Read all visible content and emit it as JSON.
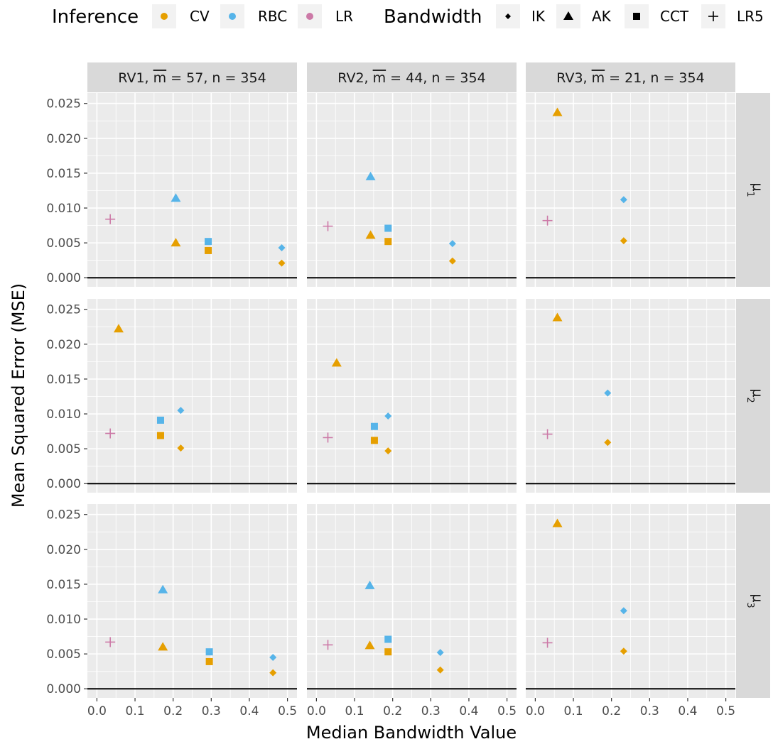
{
  "chart_data": {
    "type": "scatter",
    "xlabel": "Median Bandwidth Value",
    "ylabel": "Mean Squared Error (MSE)",
    "xlim": [
      -0.025,
      0.525
    ],
    "ylim": [
      -0.0013,
      0.0265
    ],
    "x_ticks": [
      "0.0",
      "0.1",
      "0.2",
      "0.3",
      "0.4",
      "0.5"
    ],
    "y_ticks": [
      "0.000",
      "0.005",
      "0.010",
      "0.015",
      "0.020",
      "0.025"
    ],
    "grid": true,
    "reference_line_y": 0,
    "legend": {
      "placement": "top",
      "inference_title": "Inference",
      "inference": [
        {
          "key": "CV",
          "label": "CV",
          "color": "#E69F00"
        },
        {
          "key": "RBC",
          "label": "RBC",
          "color": "#56B4E9"
        },
        {
          "key": "LR",
          "label": "LR",
          "color": "#CC79A7"
        }
      ],
      "bandwidth_title": "Bandwidth",
      "bandwidth": [
        {
          "key": "IK",
          "label": "IK",
          "shape": "diamond"
        },
        {
          "key": "AK",
          "label": "AK",
          "shape": "triangle"
        },
        {
          "key": "CCT",
          "label": "CCT",
          "shape": "square"
        },
        {
          "key": "LR5",
          "label": "LR5",
          "shape": "plus"
        }
      ]
    },
    "columns": [
      {
        "rv": "RV1",
        "m": "57",
        "n": "354"
      },
      {
        "rv": "RV2",
        "m": "44",
        "n": "354"
      },
      {
        "rv": "RV3",
        "m": "21",
        "n": "354"
      }
    ],
    "rows": [
      {
        "label": "μ1",
        "base": "μ",
        "sub": "1"
      },
      {
        "label": "μ2",
        "base": "μ",
        "sub": "2"
      },
      {
        "label": "μ3",
        "base": "μ",
        "sub": "3"
      }
    ],
    "panels": [
      {
        "col": 0,
        "row": 0,
        "points": [
          {
            "inference": "LR",
            "bandwidth": "LR5",
            "x": 0.035,
            "y": 0.0084
          },
          {
            "inference": "RBC",
            "bandwidth": "AK",
            "x": 0.207,
            "y": 0.0114
          },
          {
            "inference": "CV",
            "bandwidth": "AK",
            "x": 0.207,
            "y": 0.005
          },
          {
            "inference": "RBC",
            "bandwidth": "CCT",
            "x": 0.292,
            "y": 0.0052
          },
          {
            "inference": "CV",
            "bandwidth": "CCT",
            "x": 0.292,
            "y": 0.0039
          },
          {
            "inference": "RBC",
            "bandwidth": "IK",
            "x": 0.485,
            "y": 0.0043
          },
          {
            "inference": "CV",
            "bandwidth": "IK",
            "x": 0.485,
            "y": 0.0021
          }
        ]
      },
      {
        "col": 1,
        "row": 0,
        "points": [
          {
            "inference": "LR",
            "bandwidth": "LR5",
            "x": 0.03,
            "y": 0.0074
          },
          {
            "inference": "RBC",
            "bandwidth": "AK",
            "x": 0.142,
            "y": 0.0145
          },
          {
            "inference": "CV",
            "bandwidth": "AK",
            "x": 0.142,
            "y": 0.0061
          },
          {
            "inference": "RBC",
            "bandwidth": "CCT",
            "x": 0.188,
            "y": 0.0071
          },
          {
            "inference": "CV",
            "bandwidth": "CCT",
            "x": 0.188,
            "y": 0.0052
          },
          {
            "inference": "RBC",
            "bandwidth": "IK",
            "x": 0.357,
            "y": 0.0049
          },
          {
            "inference": "CV",
            "bandwidth": "IK",
            "x": 0.357,
            "y": 0.0024
          }
        ]
      },
      {
        "col": 2,
        "row": 0,
        "points": [
          {
            "inference": "LR",
            "bandwidth": "LR5",
            "x": 0.032,
            "y": 0.0082
          },
          {
            "inference": "CV",
            "bandwidth": "AK",
            "x": 0.058,
            "y": 0.0237
          },
          {
            "inference": "RBC",
            "bandwidth": "IK",
            "x": 0.232,
            "y": 0.0112
          },
          {
            "inference": "CV",
            "bandwidth": "IK",
            "x": 0.232,
            "y": 0.0053
          }
        ]
      },
      {
        "col": 0,
        "row": 1,
        "points": [
          {
            "inference": "LR",
            "bandwidth": "LR5",
            "x": 0.035,
            "y": 0.0072
          },
          {
            "inference": "CV",
            "bandwidth": "AK",
            "x": 0.057,
            "y": 0.0222
          },
          {
            "inference": "RBC",
            "bandwidth": "CCT",
            "x": 0.167,
            "y": 0.0091
          },
          {
            "inference": "CV",
            "bandwidth": "CCT",
            "x": 0.167,
            "y": 0.0069
          },
          {
            "inference": "RBC",
            "bandwidth": "IK",
            "x": 0.22,
            "y": 0.0105
          },
          {
            "inference": "CV",
            "bandwidth": "IK",
            "x": 0.22,
            "y": 0.0051
          }
        ]
      },
      {
        "col": 1,
        "row": 1,
        "points": [
          {
            "inference": "LR",
            "bandwidth": "LR5",
            "x": 0.03,
            "y": 0.0066
          },
          {
            "inference": "CV",
            "bandwidth": "AK",
            "x": 0.053,
            "y": 0.0173
          },
          {
            "inference": "RBC",
            "bandwidth": "CCT",
            "x": 0.152,
            "y": 0.0082
          },
          {
            "inference": "CV",
            "bandwidth": "CCT",
            "x": 0.152,
            "y": 0.0062
          },
          {
            "inference": "RBC",
            "bandwidth": "IK",
            "x": 0.188,
            "y": 0.0097
          },
          {
            "inference": "CV",
            "bandwidth": "IK",
            "x": 0.188,
            "y": 0.0047
          }
        ]
      },
      {
        "col": 2,
        "row": 1,
        "points": [
          {
            "inference": "LR",
            "bandwidth": "LR5",
            "x": 0.032,
            "y": 0.0071
          },
          {
            "inference": "CV",
            "bandwidth": "AK",
            "x": 0.058,
            "y": 0.0238
          },
          {
            "inference": "RBC",
            "bandwidth": "IK",
            "x": 0.19,
            "y": 0.013
          },
          {
            "inference": "CV",
            "bandwidth": "IK",
            "x": 0.19,
            "y": 0.0059
          }
        ]
      },
      {
        "col": 0,
        "row": 2,
        "points": [
          {
            "inference": "LR",
            "bandwidth": "LR5",
            "x": 0.035,
            "y": 0.0067
          },
          {
            "inference": "RBC",
            "bandwidth": "AK",
            "x": 0.173,
            "y": 0.0142
          },
          {
            "inference": "CV",
            "bandwidth": "AK",
            "x": 0.173,
            "y": 0.006
          },
          {
            "inference": "RBC",
            "bandwidth": "CCT",
            "x": 0.295,
            "y": 0.0053
          },
          {
            "inference": "CV",
            "bandwidth": "CCT",
            "x": 0.295,
            "y": 0.0039
          },
          {
            "inference": "RBC",
            "bandwidth": "IK",
            "x": 0.462,
            "y": 0.0045
          },
          {
            "inference": "CV",
            "bandwidth": "IK",
            "x": 0.462,
            "y": 0.0023
          }
        ]
      },
      {
        "col": 1,
        "row": 2,
        "points": [
          {
            "inference": "LR",
            "bandwidth": "LR5",
            "x": 0.03,
            "y": 0.0063
          },
          {
            "inference": "RBC",
            "bandwidth": "AK",
            "x": 0.14,
            "y": 0.0148
          },
          {
            "inference": "CV",
            "bandwidth": "AK",
            "x": 0.14,
            "y": 0.0062
          },
          {
            "inference": "RBC",
            "bandwidth": "CCT",
            "x": 0.188,
            "y": 0.0071
          },
          {
            "inference": "CV",
            "bandwidth": "CCT",
            "x": 0.188,
            "y": 0.0053
          },
          {
            "inference": "RBC",
            "bandwidth": "IK",
            "x": 0.325,
            "y": 0.0052
          },
          {
            "inference": "CV",
            "bandwidth": "IK",
            "x": 0.325,
            "y": 0.0027
          }
        ]
      },
      {
        "col": 2,
        "row": 2,
        "points": [
          {
            "inference": "LR",
            "bandwidth": "LR5",
            "x": 0.032,
            "y": 0.0066
          },
          {
            "inference": "CV",
            "bandwidth": "AK",
            "x": 0.058,
            "y": 0.0237
          },
          {
            "inference": "RBC",
            "bandwidth": "IK",
            "x": 0.232,
            "y": 0.0112
          },
          {
            "inference": "CV",
            "bandwidth": "IK",
            "x": 0.232,
            "y": 0.0054
          }
        ]
      }
    ]
  }
}
